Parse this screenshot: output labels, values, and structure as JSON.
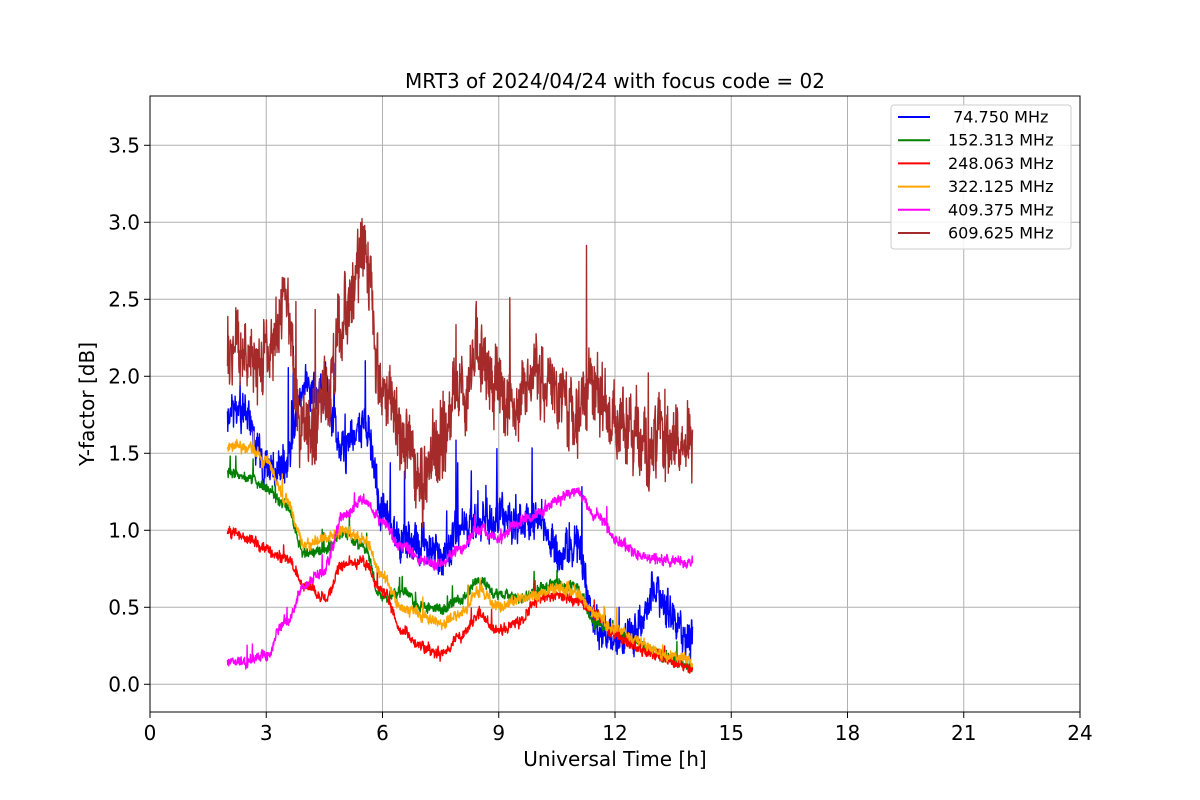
{
  "chart_data": {
    "type": "line",
    "title": "MRT3 of 2024/04/24 with focus code = 02",
    "xlabel": "Universal Time [h]",
    "ylabel": "Y-factor [dB]",
    "xlim": [
      0,
      24
    ],
    "ylim": [
      -0.18,
      3.82
    ],
    "x_ticks": [
      0,
      3,
      6,
      9,
      12,
      15,
      18,
      21,
      24
    ],
    "y_ticks": [
      0.0,
      0.5,
      1.0,
      1.5,
      2.0,
      2.5,
      3.0,
      3.5
    ],
    "x_tick_labels": [
      "0",
      "3",
      "6",
      "9",
      "12",
      "15",
      "18",
      "21",
      "24"
    ],
    "y_tick_labels": [
      "0.0",
      "0.5",
      "1.0",
      "1.5",
      "2.0",
      "2.5",
      "3.0",
      "3.5"
    ],
    "grid": true,
    "legend_position": "top-right",
    "x": [
      2.0,
      2.5,
      3.0,
      3.5,
      4.0,
      4.5,
      5.0,
      5.5,
      6.0,
      6.5,
      7.0,
      7.5,
      8.0,
      8.5,
      9.0,
      9.5,
      10.0,
      10.5,
      11.0,
      11.5,
      12.0,
      12.5,
      13.0,
      13.5,
      14.0
    ],
    "series": [
      {
        "name": " 74.750 MHz",
        "color": "#0000ff",
        "noise": 0.18,
        "values": [
          1.8,
          1.75,
          1.4,
          1.45,
          1.95,
          1.9,
          1.5,
          1.7,
          1.15,
          0.9,
          0.95,
          0.8,
          1.0,
          1.05,
          1.1,
          1.0,
          1.1,
          0.85,
          0.9,
          0.4,
          0.25,
          0.35,
          0.6,
          0.45,
          0.3
        ]
      },
      {
        "name": "152.313 MHz",
        "color": "#008000",
        "noise": 0.05,
        "values": [
          1.38,
          1.35,
          1.28,
          1.15,
          0.85,
          0.88,
          0.98,
          0.9,
          0.55,
          0.6,
          0.5,
          0.48,
          0.55,
          0.68,
          0.58,
          0.55,
          0.62,
          0.65,
          0.62,
          0.4,
          0.35,
          0.28,
          0.22,
          0.15,
          0.1
        ]
      },
      {
        "name": "248.063 MHz",
        "color": "#ff0000",
        "noise": 0.05,
        "values": [
          1.0,
          0.95,
          0.88,
          0.82,
          0.65,
          0.55,
          0.78,
          0.8,
          0.6,
          0.35,
          0.25,
          0.2,
          0.3,
          0.45,
          0.35,
          0.4,
          0.55,
          0.58,
          0.55,
          0.45,
          0.32,
          0.25,
          0.2,
          0.15,
          0.08
        ]
      },
      {
        "name": "322.125 MHz",
        "color": "#ffa500",
        "noise": 0.05,
        "values": [
          1.55,
          1.55,
          1.45,
          1.2,
          0.9,
          0.95,
          1.0,
          0.95,
          0.7,
          0.5,
          0.45,
          0.4,
          0.45,
          0.6,
          0.5,
          0.55,
          0.58,
          0.62,
          0.6,
          0.45,
          0.35,
          0.3,
          0.22,
          0.18,
          0.15
        ]
      },
      {
        "name": "409.375 MHz",
        "color": "#ff00ff",
        "noise": 0.05,
        "values": [
          0.15,
          0.15,
          0.2,
          0.4,
          0.65,
          0.75,
          1.1,
          1.2,
          1.05,
          0.9,
          0.8,
          0.78,
          0.88,
          1.0,
          0.95,
          1.05,
          1.1,
          1.2,
          1.25,
          1.1,
          0.95,
          0.85,
          0.82,
          0.8,
          0.8
        ]
      },
      {
        "name": "609.625 MHz",
        "color": "#a52a2a",
        "noise": 0.35,
        "values": [
          2.25,
          2.1,
          2.2,
          2.4,
          1.6,
          1.85,
          2.4,
          2.8,
          1.9,
          1.6,
          1.3,
          1.55,
          1.85,
          2.15,
          1.9,
          1.8,
          2.0,
          1.9,
          1.75,
          1.9,
          1.75,
          1.65,
          1.6,
          1.55,
          1.6
        ]
      }
    ]
  }
}
